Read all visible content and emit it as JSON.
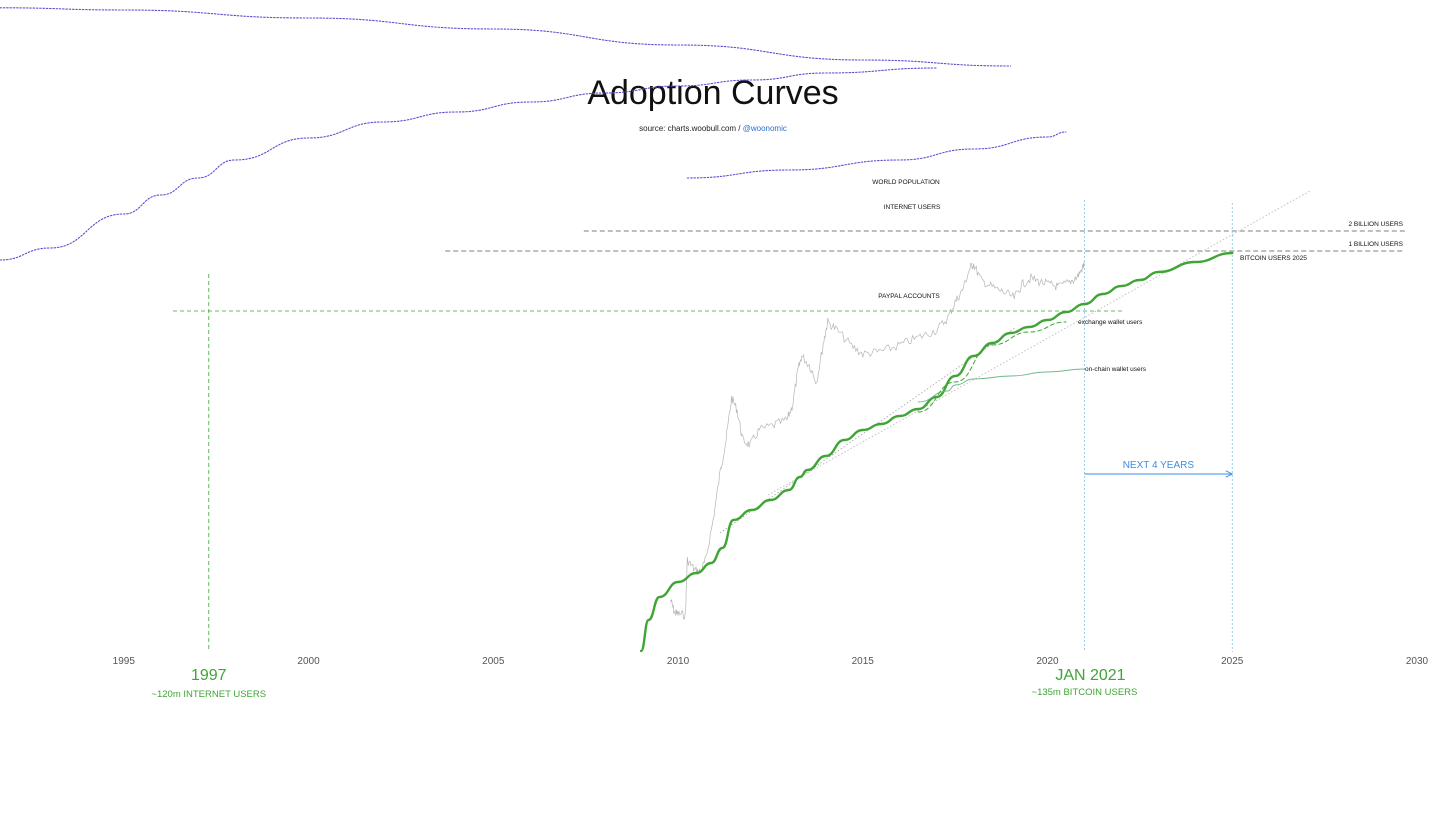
{
  "chart_data": {
    "type": "line",
    "title": "Adoption Curves",
    "source": {
      "prefix": "source: charts.woobull.com /",
      "handle": "@woonomic"
    },
    "x_axis": {
      "range": [
        1991.65,
        2030
      ],
      "ticks": [
        "1995",
        "2000",
        "2005",
        "2010",
        "2015",
        "2020",
        "2025",
        "2030"
      ]
    },
    "colors": {
      "bitcoin": "#3fa535",
      "population": "#5a4fd0",
      "reference": "#555555",
      "price": "#b5b5b5",
      "next": "#3a8ee6",
      "marker": "#3fa535",
      "now": "#7ec0e8"
    },
    "series": [
      {
        "name": "WORLD POPULATION",
        "style": "dotted",
        "points": [
          [
            1991.65,
            7.8
          ],
          [
            1995,
            10
          ],
          [
            2000,
            18
          ],
          [
            2005,
            29
          ],
          [
            2010,
            45
          ],
          [
            2015,
            60
          ],
          [
            2019,
            66
          ]
        ]
      },
      {
        "name": "INTERNET USERS",
        "style": "dotted",
        "points": [
          [
            1991.65,
            260
          ],
          [
            1993,
            248
          ],
          [
            1995,
            214
          ],
          [
            1996,
            195
          ],
          [
            1997,
            178
          ],
          [
            1998,
            160
          ],
          [
            2000,
            138
          ],
          [
            2002,
            122
          ],
          [
            2004,
            112
          ],
          [
            2006,
            102
          ],
          [
            2008,
            93
          ],
          [
            2010,
            86
          ],
          [
            2012,
            80
          ],
          [
            2014,
            73
          ],
          [
            2017,
            68
          ]
        ]
      },
      {
        "name": "PAYPAL ACCOUNTS",
        "style": "dotted",
        "points": [
          [
            2010.25,
            178
          ],
          [
            2013,
            170
          ],
          [
            2016,
            160
          ],
          [
            2018,
            149
          ],
          [
            2020,
            137
          ],
          [
            2020.5,
            132
          ]
        ]
      },
      {
        "name": "BITCOIN USERS 2025",
        "style": "solid",
        "points": [
          [
            2009.0,
            651
          ],
          [
            2009.2,
            620
          ],
          [
            2009.5,
            597
          ],
          [
            2010,
            582
          ],
          [
            2010.5,
            573
          ],
          [
            2010.9,
            563
          ],
          [
            2011.2,
            548
          ],
          [
            2011.5,
            520
          ],
          [
            2012,
            510
          ],
          [
            2012.5,
            500
          ],
          [
            2013,
            490
          ],
          [
            2013.3,
            477
          ],
          [
            2013.5,
            470
          ],
          [
            2014,
            456
          ],
          [
            2014.5,
            440
          ],
          [
            2015,
            430
          ],
          [
            2015.5,
            424
          ],
          [
            2016,
            416
          ],
          [
            2016.5,
            409
          ],
          [
            2017,
            397
          ],
          [
            2017.5,
            376
          ],
          [
            2018,
            356
          ],
          [
            2018.5,
            343
          ],
          [
            2019,
            333
          ],
          [
            2019.5,
            327
          ],
          [
            2020,
            320
          ],
          [
            2020.5,
            312
          ],
          [
            2021,
            304
          ],
          [
            2021.5,
            294
          ],
          [
            2022,
            286
          ],
          [
            2022.5,
            280
          ],
          [
            2023,
            272
          ],
          [
            2024,
            262
          ],
          [
            2025,
            253
          ]
        ]
      },
      {
        "name": "on-chain wallet users",
        "style": "thin",
        "points": [
          [
            2016.5,
            402
          ],
          [
            2017.3,
            391
          ],
          [
            2017.5,
            385
          ],
          [
            2018,
            379
          ],
          [
            2019,
            376
          ],
          [
            2020,
            372
          ],
          [
            2021,
            369
          ]
        ]
      },
      {
        "name": "exchange wallet users",
        "style": "dashed",
        "points": [
          [
            2016.5,
            412
          ],
          [
            2017.5,
            382
          ],
          [
            2018.5,
            345
          ],
          [
            2019.5,
            332
          ],
          [
            2020.5,
            322
          ]
        ]
      }
    ],
    "references": [
      {
        "label": "2 BILLION USERS",
        "x_from": 2007.45
      },
      {
        "label": "1 BILLION USERS",
        "x_from": 2003.7
      }
    ],
    "annotations": {
      "marker_1997": {
        "value": "1997",
        "note": "~120m INTERNET USERS",
        "x": 1997.3
      },
      "marker_2021": {
        "value": "JAN 2021",
        "note": "~135m BITCOIN USERS",
        "x": 2021.0
      },
      "next_years": {
        "label": "NEXT 4 YEARS",
        "from": 2021.0,
        "to": 2025.0
      },
      "milestone_2025": {
        "x": 2025.0
      }
    }
  }
}
